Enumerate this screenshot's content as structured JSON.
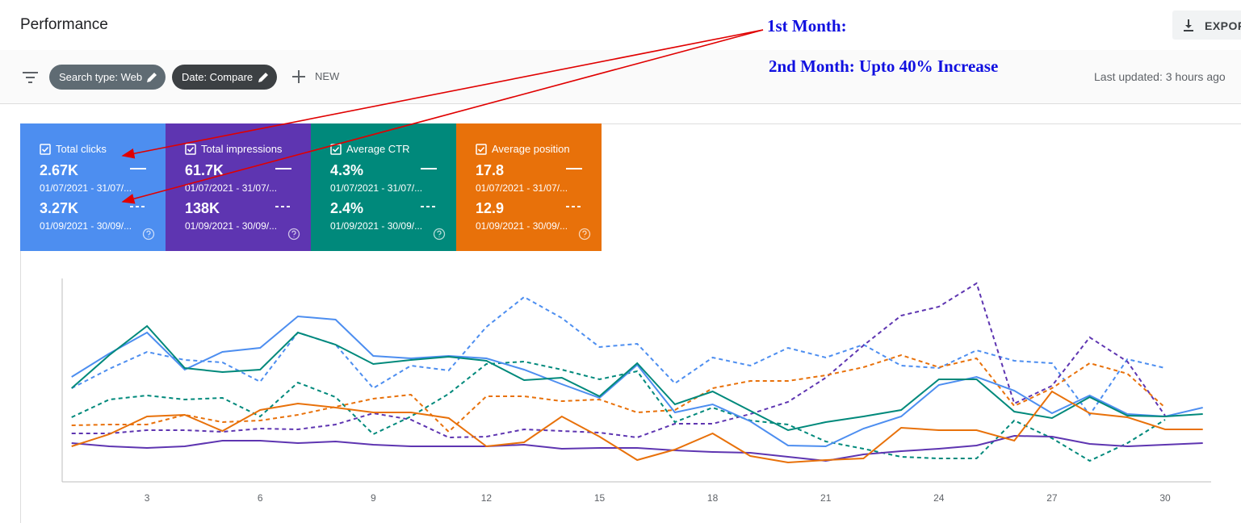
{
  "header": {
    "title": "Performance",
    "export": "EXPORT"
  },
  "filters": {
    "chips": [
      "Search type: Web",
      "Date: Compare"
    ],
    "new": "NEW",
    "last_updated": "Last updated: 3 hours ago"
  },
  "annotations": [
    "1st Month:",
    "2nd Month: Upto 40% Increase"
  ],
  "chart_data": {
    "type": "line",
    "x": [
      1,
      2,
      3,
      4,
      5,
      6,
      7,
      8,
      9,
      10,
      11,
      12,
      13,
      14,
      15,
      16,
      17,
      18,
      19,
      20,
      21,
      22,
      23,
      24,
      25,
      26,
      27,
      28,
      29,
      30,
      31
    ],
    "xlim": [
      0.75,
      31.22
    ],
    "xticks": [
      3,
      6,
      9,
      12,
      15,
      18,
      21,
      24,
      27,
      30
    ],
    "series": [
      {
        "name": "Total clicks",
        "color": "#4d8ef0",
        "totals": [
          {
            "value": "2.67K",
            "dates": "01/07/2021 - 31/07/..."
          },
          {
            "value": "3.27K",
            "dates": "01/09/2021 - 30/09/..."
          }
        ],
        "values": [
          130,
          159,
          185,
          139,
          161,
          166,
          205,
          201,
          156,
          153,
          156,
          153,
          139,
          121,
          104,
          145,
          86,
          96,
          75,
          45,
          44,
          66,
          81,
          120,
          130,
          113,
          85,
          107,
          84,
          81,
          92
        ],
        "values_compare": [
          116,
          140,
          161,
          151,
          148,
          124,
          185,
          170,
          116,
          144,
          138,
          192,
          229,
          203,
          167,
          171,
          122,
          154,
          144,
          166,
          154,
          170,
          144,
          141,
          163,
          150,
          147,
          83,
          152,
          141,
          null
        ]
      },
      {
        "name": "Total impressions",
        "color": "#5e35b1",
        "totals": [
          {
            "value": "61.7K",
            "dates": "01/07/2021 - 31/07/..."
          },
          {
            "value": "138K",
            "dates": "01/09/2021 - 30/09/..."
          }
        ],
        "values": [
          48,
          44,
          42,
          44,
          51,
          51,
          48,
          50,
          46,
          44,
          44,
          44,
          46,
          41,
          42,
          42,
          39,
          37,
          36,
          31,
          26,
          34,
          38,
          41,
          45,
          57,
          56,
          47,
          44,
          46,
          48
        ],
        "values_compare": [
          60,
          60,
          64,
          64,
          62,
          66,
          65,
          71,
          85,
          77,
          55,
          56,
          65,
          63,
          61,
          55,
          72,
          72,
          84,
          99,
          129,
          169,
          206,
          217,
          246,
          97,
          119,
          179,
          149,
          82,
          null
        ]
      },
      {
        "name": "Average CTR",
        "color": "#00897b",
        "totals": [
          {
            "value": "4.3%",
            "dates": "01/07/2021 - 31/07/..."
          },
          {
            "value": "2.4%",
            "dates": "01/09/2021 - 30/09/..."
          }
        ],
        "values": [
          116,
          157,
          193,
          141,
          136,
          139,
          185,
          170,
          146,
          151,
          155,
          150,
          126,
          129,
          106,
          147,
          96,
          112,
          88,
          64,
          74,
          81,
          89,
          127,
          127,
          87,
          79,
          105,
          82,
          81,
          84
        ],
        "values_compare": [
          80,
          102,
          107,
          102,
          104,
          81,
          123,
          105,
          59,
          81,
          109,
          146,
          149,
          139,
          127,
          137,
          74,
          92,
          76,
          71,
          50,
          41,
          31,
          29,
          29,
          76,
          54,
          26,
          48,
          77,
          null
        ]
      },
      {
        "name": "Average position",
        "color": "#e8710a",
        "totals": [
          {
            "value": "17.8",
            "dates": "01/07/2021 - 31/07/..."
          },
          {
            "value": "12.9",
            "dates": "01/09/2021 - 30/09/..."
          }
        ],
        "values": [
          44,
          59,
          81,
          83,
          63,
          89,
          97,
          92,
          86,
          86,
          79,
          44,
          49,
          81,
          56,
          27,
          40,
          60,
          32,
          24,
          27,
          29,
          67,
          64,
          64,
          51,
          112,
          85,
          80,
          65,
          65
        ],
        "values_compare": [
          70,
          71,
          71,
          83,
          74,
          76,
          83,
          93,
          103,
          108,
          62,
          106,
          106,
          100,
          102,
          86,
          89,
          116,
          125,
          125,
          132,
          142,
          157,
          142,
          153,
          94,
          116,
          147,
          134,
          92,
          null
        ]
      }
    ]
  }
}
